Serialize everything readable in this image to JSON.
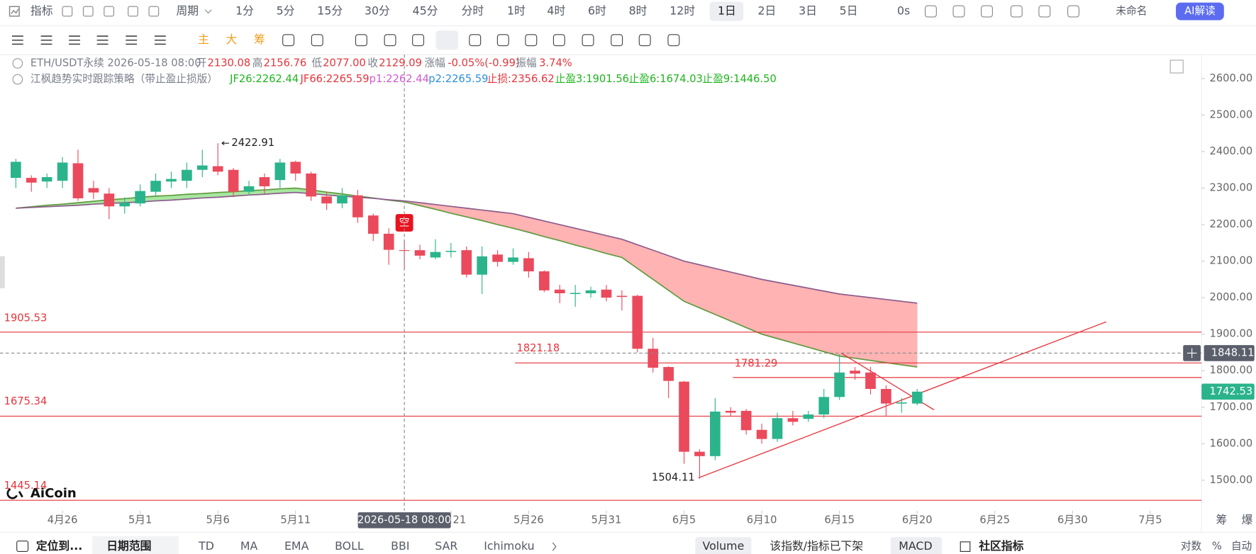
{
  "toolbar": {
    "indicator": "指标",
    "period": "周期",
    "intervals": [
      "1分",
      "5分",
      "15分",
      "30分",
      "45分",
      "分时",
      "1时",
      "4时",
      "6时",
      "8时",
      "12时",
      "1日",
      "2日",
      "3日",
      "5日"
    ],
    "countdown": "0s",
    "layout_name": "未命名",
    "ai_button": "AI解读"
  },
  "drawing_toolbar": {
    "chips": [
      "主",
      "大",
      "筹"
    ]
  },
  "info_row": [
    "ETH/USDT永续",
    "2026-05-18 08:00",
    "开",
    "2130.08",
    "高",
    "2156.76",
    "低",
    "2077.00",
    "收",
    "2129.09",
    "涨幅",
    "-0.05%(-0.99)",
    "振幅",
    "3.74%"
  ],
  "indicator_row": [
    {
      "text": "江枫趋势实时跟踪策略（带止盈止损版）",
      "color": "#7a7f8a"
    },
    {
      "text": "JF26:2262.44",
      "color": "#1fb51f"
    },
    {
      "text": "JF66:2265.59",
      "color": "#e6353c"
    },
    {
      "text": "p1:2262.44",
      "color": "#d25ad2"
    },
    {
      "text": "p2:2265.59",
      "color": "#2f8fd8"
    },
    {
      "text": "止损:2356.62",
      "color": "#e6353c"
    },
    {
      "text": "止盈3:1901.56",
      "color": "#1fb51f"
    },
    {
      "text": "止盈6:1674.03",
      "color": "#1fb51f"
    },
    {
      "text": "止盈9:1446.50",
      "color": "#1fb51f"
    }
  ],
  "chart_data": {
    "type": "candlestick",
    "open": [
      2328,
      2328,
      2318,
      2320,
      2368,
      2300,
      2285,
      2250,
      2258,
      2290,
      2318,
      2320,
      2350,
      2360,
      2350,
      2290,
      2330,
      2322,
      2372,
      2340,
      2277,
      2258,
      2280,
      2225,
      2175,
      2130.08,
      2130,
      2110,
      2125,
      2130,
      2063,
      2118,
      2098,
      2108,
      2072,
      2022,
      2010,
      2012,
      2022,
      2005,
      2005,
      1860,
      1810,
      1770,
      1578,
      1566,
      1690,
      1690,
      1638,
      1613,
      1670,
      1668,
      1680,
      1728,
      1800,
      1795,
      1750,
      1710,
      1710
    ],
    "high": [
      2380,
      2335,
      2340,
      2385,
      2405,
      2320,
      2300,
      2275,
      2310,
      2340,
      2345,
      2370,
      2405,
      2422.91,
      2355,
      2320,
      2340,
      2380,
      2375,
      2345,
      2290,
      2300,
      2295,
      2230,
      2190,
      2156.76,
      2145,
      2160,
      2150,
      2140,
      2140,
      2130,
      2135,
      2125,
      2075,
      2035,
      2035,
      2030,
      2035,
      2020,
      2008,
      1890,
      1812,
      1772,
      1585,
      1725,
      1700,
      1695,
      1655,
      1685,
      1690,
      1690,
      1750,
      1845,
      1810,
      1810,
      1760,
      1725,
      1750
    ],
    "low": [
      2300,
      2290,
      2300,
      2300,
      2265,
      2270,
      2215,
      2230,
      2250,
      2280,
      2300,
      2300,
      2330,
      2335,
      2275,
      2280,
      2285,
      2300,
      2320,
      2265,
      2240,
      2245,
      2205,
      2155,
      2090,
      2077,
      2105,
      2105,
      2110,
      2055,
      2010,
      2085,
      2090,
      2055,
      2015,
      1985,
      1975,
      2000,
      1990,
      1965,
      1850,
      1795,
      1725,
      1545,
      1504.11,
      1555,
      1675,
      1625,
      1600,
      1605,
      1650,
      1660,
      1670,
      1720,
      1775,
      1735,
      1675,
      1685,
      1705
    ],
    "close": [
      2372,
      2315,
      2330,
      2370,
      2272,
      2288,
      2250,
      2260,
      2292,
      2320,
      2325,
      2350,
      2362,
      2345,
      2290,
      2305,
      2305,
      2370,
      2340,
      2277,
      2258,
      2280,
      2220,
      2175,
      2131,
      2129.09,
      2115,
      2125,
      2128,
      2063,
      2113,
      2098,
      2110,
      2072,
      2020,
      2012,
      2013,
      2020,
      2000,
      2002,
      1860,
      1808,
      1772,
      1578,
      1566,
      1688,
      1685,
      1637,
      1613,
      1670,
      1660,
      1680,
      1728,
      1795,
      1792,
      1750,
      1710,
      1713,
      1742.53
    ],
    "up_color": "#2bb48c",
    "down_color": "#eb4a5c",
    "lines": [
      {
        "color": "#5f9a3c",
        "values": [
          2245,
          2249,
          2253,
          2256,
          2260,
          2264,
          2268,
          2271,
          2275,
          2278,
          2280,
          2283,
          2285,
          2288,
          2290,
          2293,
          2295,
          2298,
          2300,
          2295,
          2289,
          2284,
          2278,
          2273,
          2267,
          2262,
          2252,
          2242,
          2231,
          2221,
          2211,
          2200,
          2190,
          2179,
          2167,
          2156,
          2144,
          2133,
          2121,
          2110,
          2080,
          2050,
          2020,
          1990,
          1972,
          1954,
          1936,
          1918,
          1900,
          1888,
          1876,
          1864,
          1852,
          1840,
          1834,
          1828,
          1822,
          1816,
          1810
        ]
      },
      {
        "color": "#8c5c8c",
        "values": [
          2245,
          2247,
          2249,
          2251,
          2253,
          2256,
          2258,
          2260,
          2262,
          2265,
          2267,
          2270,
          2273,
          2275,
          2278,
          2281,
          2283,
          2286,
          2288,
          2285,
          2281,
          2278,
          2275,
          2272,
          2268,
          2265,
          2260,
          2255,
          2250,
          2245,
          2240,
          2235,
          2230,
          2220,
          2210,
          2200,
          2190,
          2180,
          2170,
          2160,
          2145,
          2130,
          2115,
          2100,
          2090,
          2080,
          2070,
          2060,
          2050,
          2042,
          2034,
          2026,
          2018,
          2010,
          2005,
          2000,
          1995,
          1990,
          1985
        ]
      }
    ],
    "fill_up_color": "#a8e6a0",
    "fill_down_color": "#ffb3b3",
    "levels": [
      {
        "value": 1905.53,
        "color": "#e6353c"
      },
      {
        "value": 1821.18,
        "color": "#e6353c"
      },
      {
        "value": 1781.29,
        "color": "#e6353c"
      },
      {
        "value": 1675.34,
        "color": "#e6353c"
      },
      {
        "value": 1445.14,
        "color": "#e6353c"
      }
    ],
    "ylim": [
      1416.7,
      2665.7
    ],
    "yticks": [
      {
        "value": 1500,
        "label": "1500.00"
      },
      {
        "value": 1600,
        "label": "1600.00"
      },
      {
        "value": 1700,
        "label": "1700.00"
      },
      {
        "value": 1800,
        "label": "1800.00"
      },
      {
        "value": 1900,
        "label": "1900.00"
      },
      {
        "value": 2000,
        "label": "2000.00"
      },
      {
        "value": 2100,
        "label": "2100.00"
      },
      {
        "value": 2200,
        "label": "2200.00"
      },
      {
        "value": 2300,
        "label": "2300.00"
      },
      {
        "value": 2400,
        "label": "2400.00"
      },
      {
        "value": 2500,
        "label": "2500.00"
      },
      {
        "value": 2600,
        "label": "2600.00"
      }
    ],
    "xlim": [
      -1.02,
      76.3
    ],
    "xticks": [
      {
        "value": 3,
        "label": "4月26"
      },
      {
        "value": 8,
        "label": "5月1"
      },
      {
        "value": 13,
        "label": "5月6"
      },
      {
        "value": 18,
        "label": "5月11"
      },
      {
        "value": 28,
        "label": "5月21"
      },
      {
        "value": 33,
        "label": "5月26"
      },
      {
        "value": 38,
        "label": "5月31"
      },
      {
        "value": 43,
        "label": "6月5"
      },
      {
        "value": 48,
        "label": "6月10"
      },
      {
        "value": 53,
        "label": "6月15"
      },
      {
        "value": 58,
        "label": "6月20"
      },
      {
        "value": 63,
        "label": "6月25"
      },
      {
        "value": 68,
        "label": "6月30"
      },
      {
        "value": 73,
        "label": "7月5"
      }
    ],
    "crosshair": {
      "index": 25,
      "time": "2026-05-18 08:00",
      "price": 1848.11
    },
    "signal": {
      "index": 25,
      "text": "空"
    }
  },
  "bottom_bar": {
    "locate": "定位到...",
    "date_range": "日期范围",
    "indicators": [
      "TD",
      "MA",
      "EMA",
      "BOLL",
      "BBI",
      "SAR",
      "Ichimoku"
    ],
    "sub_panels": [
      "Volume",
      "该指数/指标已下架",
      "MACD"
    ],
    "community": "社区指标",
    "scale_options": [
      "对数",
      "%",
      "自动"
    ]
  },
  "side_tabs": [
    "筹",
    "爆"
  ],
  "logo": "AiCoin"
}
